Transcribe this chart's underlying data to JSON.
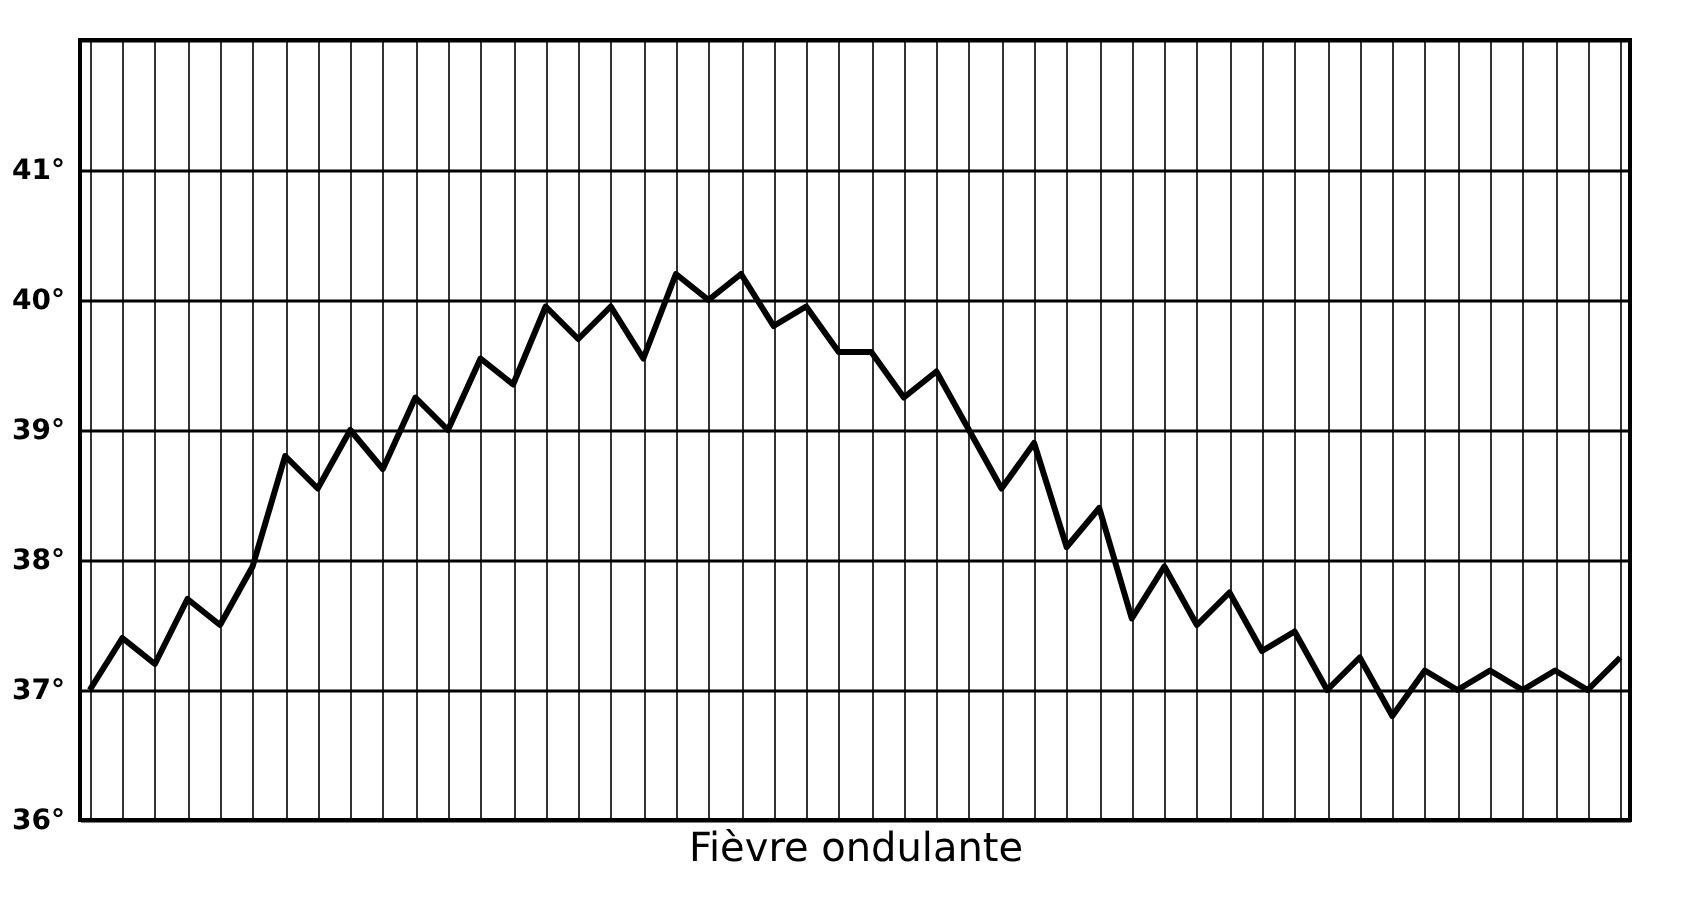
{
  "chart_data": {
    "type": "line",
    "xlabel": "Fièvre ondulante",
    "categories": [
      null,
      null,
      null,
      null,
      null,
      null,
      null,
      null,
      null,
      null,
      null,
      null,
      null,
      null,
      null,
      null,
      null,
      null,
      null,
      null,
      null,
      null,
      null,
      null,
      null,
      null,
      null,
      null,
      null,
      null,
      null,
      null,
      null,
      null,
      null,
      null,
      null,
      null,
      null,
      null,
      null,
      null,
      null,
      null,
      null,
      null,
      null,
      null
    ],
    "series": [
      {
        "color": "#000000",
        "values": [
          37.0,
          37.4,
          37.2,
          37.7,
          37.5,
          37.95,
          38.8,
          38.55,
          39.0,
          38.7,
          39.25,
          39.0,
          39.55,
          39.35,
          39.95,
          39.7,
          39.95,
          39.55,
          40.2,
          40.0,
          40.2,
          39.8,
          39.95,
          39.6,
          39.6,
          39.25,
          39.45,
          39.0,
          38.55,
          38.9,
          38.1,
          38.4,
          37.55,
          37.95,
          37.5,
          37.75,
          37.3,
          37.45,
          37.0,
          37.25,
          36.8,
          37.15,
          37.0,
          37.15,
          37.0,
          37.15,
          37.0,
          37.25
        ]
      }
    ],
    "ylim": [
      36,
      42
    ],
    "yticks": [
      {
        "value": 36,
        "label": "36°"
      },
      {
        "value": 37,
        "label": "37°"
      },
      {
        "value": 38,
        "label": "38°"
      },
      {
        "value": 39,
        "label": "39°"
      },
      {
        "value": 40,
        "label": "40°"
      },
      {
        "value": 41,
        "label": "41°"
      },
      {
        "value": 42,
        "label": null
      }
    ],
    "grid": true,
    "tick_labels": "y",
    "marker": "none",
    "line_style": "solid"
  }
}
